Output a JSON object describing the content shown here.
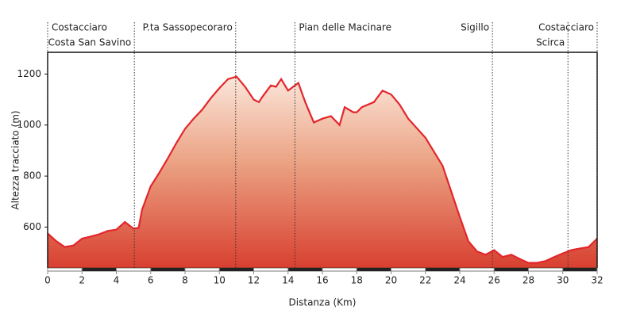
{
  "chart_data": {
    "type": "area",
    "xlabel": "Distanza (Km)",
    "ylabel": "Altezza tracciato (m)",
    "x": [
      0,
      0.5,
      1,
      1.5,
      2,
      2.5,
      3,
      3.5,
      4,
      4.5,
      5,
      5.3,
      5.5,
      6,
      6.5,
      7,
      7.5,
      8,
      8.5,
      9,
      9.5,
      10,
      10.5,
      11,
      11.5,
      12,
      12.3,
      12.5,
      13,
      13.3,
      13.6,
      14,
      14.3,
      14.6,
      15,
      15.5,
      16,
      16.5,
      17,
      17.3,
      17.8,
      18,
      18.3,
      19,
      19.5,
      20,
      20.5,
      21,
      22,
      23,
      24,
      24.5,
      25,
      25.5,
      26,
      26.5,
      27,
      27.5,
      28,
      28.5,
      29,
      29.5,
      30,
      30.5,
      31,
      31.5,
      32
    ],
    "values": [
      575,
      545,
      522,
      528,
      555,
      563,
      572,
      585,
      590,
      620,
      594,
      597,
      668,
      760,
      813,
      870,
      930,
      985,
      1025,
      1060,
      1105,
      1145,
      1180,
      1190,
      1150,
      1100,
      1090,
      1110,
      1155,
      1150,
      1180,
      1135,
      1150,
      1165,
      1090,
      1010,
      1025,
      1035,
      1000,
      1070,
      1050,
      1050,
      1070,
      1090,
      1135,
      1120,
      1080,
      1025,
      950,
      840,
      640,
      545,
      505,
      492,
      510,
      483,
      492,
      475,
      460,
      460,
      467,
      483,
      497,
      510,
      516,
      522,
      555
    ],
    "color": "#e3262b",
    "xlim": [
      0,
      32
    ],
    "ylim": [
      440,
      1285
    ],
    "xticks": [
      0,
      2,
      4,
      6,
      8,
      10,
      12,
      14,
      16,
      18,
      20,
      22,
      24,
      26,
      28,
      30,
      32
    ],
    "yticks": [
      600,
      800,
      1000,
      1200
    ],
    "markers": [
      {
        "label": "Costacciaro",
        "x": 0
      },
      {
        "label": "Costa San Savino",
        "x": 5.05
      },
      {
        "label": "P.ta Sassopecoraro",
        "x": 10.95
      },
      {
        "label": "Pian delle Macinare",
        "x": 14.4
      },
      {
        "label": "Sigillo",
        "x": 25.9
      },
      {
        "label": "Scirca",
        "x": 30.3
      },
      {
        "label": "Costacciaro",
        "x": 32
      }
    ]
  }
}
